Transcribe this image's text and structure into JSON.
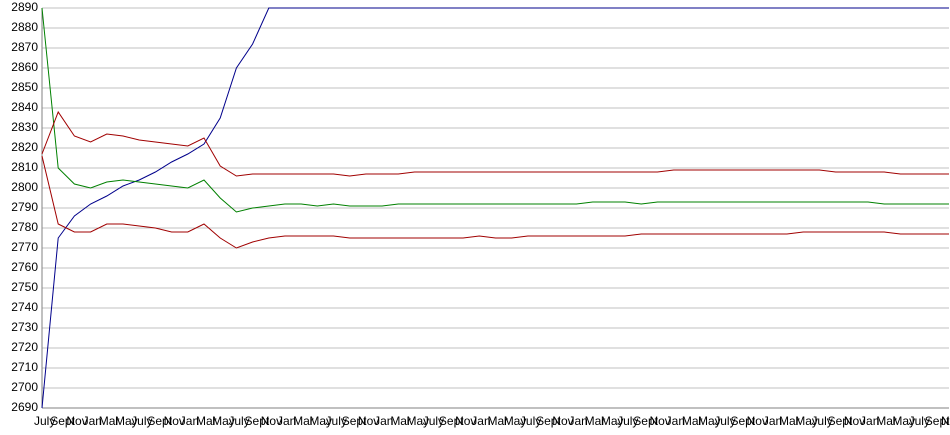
{
  "chart_data": {
    "type": "line",
    "categories": [
      "July",
      "Sept",
      "Nov",
      "Jan",
      "Mar",
      "May",
      "July",
      "Sept",
      "Nov",
      "Jan",
      "Mar",
      "May",
      "July",
      "Sept",
      "Nov",
      "Jan",
      "Mar",
      "May",
      "July",
      "Sept",
      "Nov",
      "Jan",
      "Mar",
      "May",
      "July",
      "Sept",
      "Nov",
      "Jan",
      "Mar",
      "May",
      "July",
      "Sept",
      "Nov",
      "Jan",
      "Mar",
      "May",
      "July",
      "Sept",
      "Nov",
      "Jan",
      "Mar",
      "May",
      "July",
      "Sept",
      "Nov",
      "Jan",
      "Mar",
      "May",
      "July",
      "Sept",
      "Nov",
      "Jan",
      "Mar",
      "May",
      "July",
      "Sept",
      "Nov"
    ],
    "series": [
      {
        "color": "#00008b",
        "values": [
          2690,
          2775,
          2786,
          2792,
          2796,
          2801,
          2804,
          2808,
          2813,
          2817,
          2822,
          2835,
          2860,
          2872,
          2890,
          2890,
          2890,
          2890,
          2890,
          2890,
          2890,
          2890,
          2890,
          2890,
          2890,
          2890,
          2890,
          2890,
          2890,
          2890,
          2890,
          2890,
          2890,
          2890,
          2890,
          2890,
          2890,
          2890,
          2890,
          2890,
          2890,
          2890,
          2890,
          2890,
          2890,
          2890,
          2890,
          2890,
          2890,
          2890,
          2890,
          2890,
          2890,
          2890,
          2890,
          2890,
          2890
        ]
      },
      {
        "color": "#008000",
        "values": [
          2890,
          2810,
          2802,
          2800,
          2803,
          2804,
          2803,
          2802,
          2801,
          2800,
          2804,
          2795,
          2788,
          2790,
          2791,
          2792,
          2792,
          2791,
          2792,
          2791,
          2791,
          2791,
          2792,
          2792,
          2792,
          2792,
          2792,
          2792,
          2792,
          2792,
          2792,
          2792,
          2792,
          2792,
          2793,
          2793,
          2793,
          2792,
          2793,
          2793,
          2793,
          2793,
          2793,
          2793,
          2793,
          2793,
          2793,
          2793,
          2793,
          2793,
          2793,
          2793,
          2792,
          2792,
          2792,
          2792,
          2792
        ]
      },
      {
        "color": "#a00000",
        "values": [
          2817,
          2838,
          2826,
          2823,
          2827,
          2826,
          2824,
          2823,
          2822,
          2821,
          2825,
          2811,
          2806,
          2807,
          2807,
          2807,
          2807,
          2807,
          2807,
          2806,
          2807,
          2807,
          2807,
          2808,
          2808,
          2808,
          2808,
          2808,
          2808,
          2808,
          2808,
          2808,
          2808,
          2808,
          2808,
          2808,
          2808,
          2808,
          2808,
          2809,
          2809,
          2809,
          2809,
          2809,
          2809,
          2809,
          2809,
          2809,
          2809,
          2808,
          2808,
          2808,
          2808,
          2807,
          2807,
          2807,
          2807
        ]
      },
      {
        "color": "#a00000",
        "values": [
          2816,
          2782,
          2778,
          2778,
          2782,
          2782,
          2781,
          2780,
          2778,
          2778,
          2782,
          2775,
          2770,
          2773,
          2775,
          2776,
          2776,
          2776,
          2776,
          2775,
          2775,
          2775,
          2775,
          2775,
          2775,
          2775,
          2775,
          2776,
          2775,
          2775,
          2776,
          2776,
          2776,
          2776,
          2776,
          2776,
          2776,
          2777,
          2777,
          2777,
          2777,
          2777,
          2777,
          2777,
          2777,
          2777,
          2777,
          2778,
          2778,
          2778,
          2778,
          2778,
          2778,
          2777,
          2777,
          2777,
          2777
        ]
      }
    ],
    "ylim": [
      2690,
      2890
    ],
    "yticks": [
      2690,
      2700,
      2710,
      2720,
      2730,
      2740,
      2750,
      2760,
      2770,
      2780,
      2790,
      2800,
      2810,
      2820,
      2830,
      2840,
      2850,
      2860,
      2870,
      2880,
      2890
    ],
    "grid": true
  }
}
